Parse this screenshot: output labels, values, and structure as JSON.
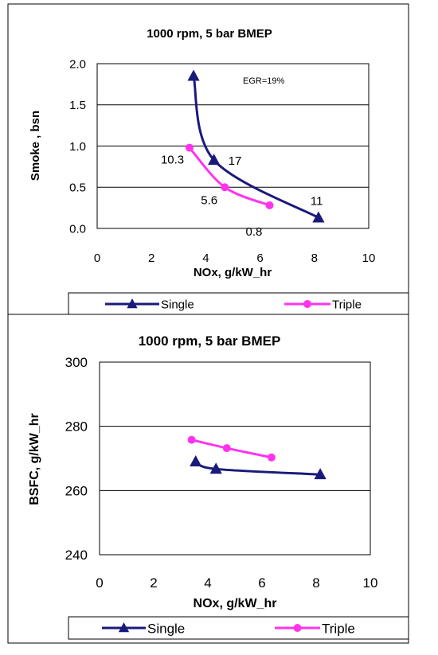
{
  "chart_data": [
    {
      "type": "line",
      "title": "1000 rpm,  5 bar BMEP",
      "xlabel": "NOx, g/kW_hr",
      "ylabel": "Smoke , bsn",
      "xlim": [
        0,
        10
      ],
      "ylim": [
        0,
        2
      ],
      "xticks": [
        "0",
        "2",
        "4",
        "6",
        "8",
        "10"
      ],
      "yticks": [
        "0.0",
        "0.5",
        "1.0",
        "1.5",
        "2.0"
      ],
      "grid": "horizontal",
      "legend_position": "bottom",
      "series": [
        {
          "name": "Single",
          "color": "#1a1a7a",
          "marker": "triangle",
          "x": [
            3.55,
            4.3,
            8.15
          ],
          "y": [
            1.85,
            0.83,
            0.13
          ],
          "point_labels": [
            "",
            "17",
            "11"
          ]
        },
        {
          "name": "Triple",
          "color": "#ff33ee",
          "marker": "circle",
          "x": [
            3.4,
            4.7,
            6.35
          ],
          "y": [
            0.98,
            0.5,
            0.28
          ],
          "point_labels": [
            "10.3",
            "5.6",
            "0.8"
          ]
        }
      ],
      "annotations": [
        {
          "text": "EGR=19%"
        }
      ]
    },
    {
      "type": "line",
      "title": "1000 rpm,  5 bar BMEP",
      "xlabel": "NOx, g/kW_hr",
      "ylabel": "BSFC, g/kW_hr",
      "xlim": [
        0,
        10
      ],
      "ylim": [
        240,
        300
      ],
      "xticks": [
        "0",
        "2",
        "4",
        "6",
        "8",
        "10"
      ],
      "yticks": [
        "240",
        "260",
        "280",
        "300"
      ],
      "grid": "horizontal",
      "legend_position": "bottom",
      "series": [
        {
          "name": "Single",
          "color": "#1a1a7a",
          "marker": "triangle",
          "x": [
            3.55,
            4.3,
            8.15
          ],
          "y": [
            269,
            266.7,
            265
          ]
        },
        {
          "name": "Triple",
          "color": "#ff33ee",
          "marker": "circle",
          "x": [
            3.4,
            4.7,
            6.35
          ],
          "y": [
            275.8,
            273.2,
            270.3
          ]
        }
      ]
    }
  ]
}
